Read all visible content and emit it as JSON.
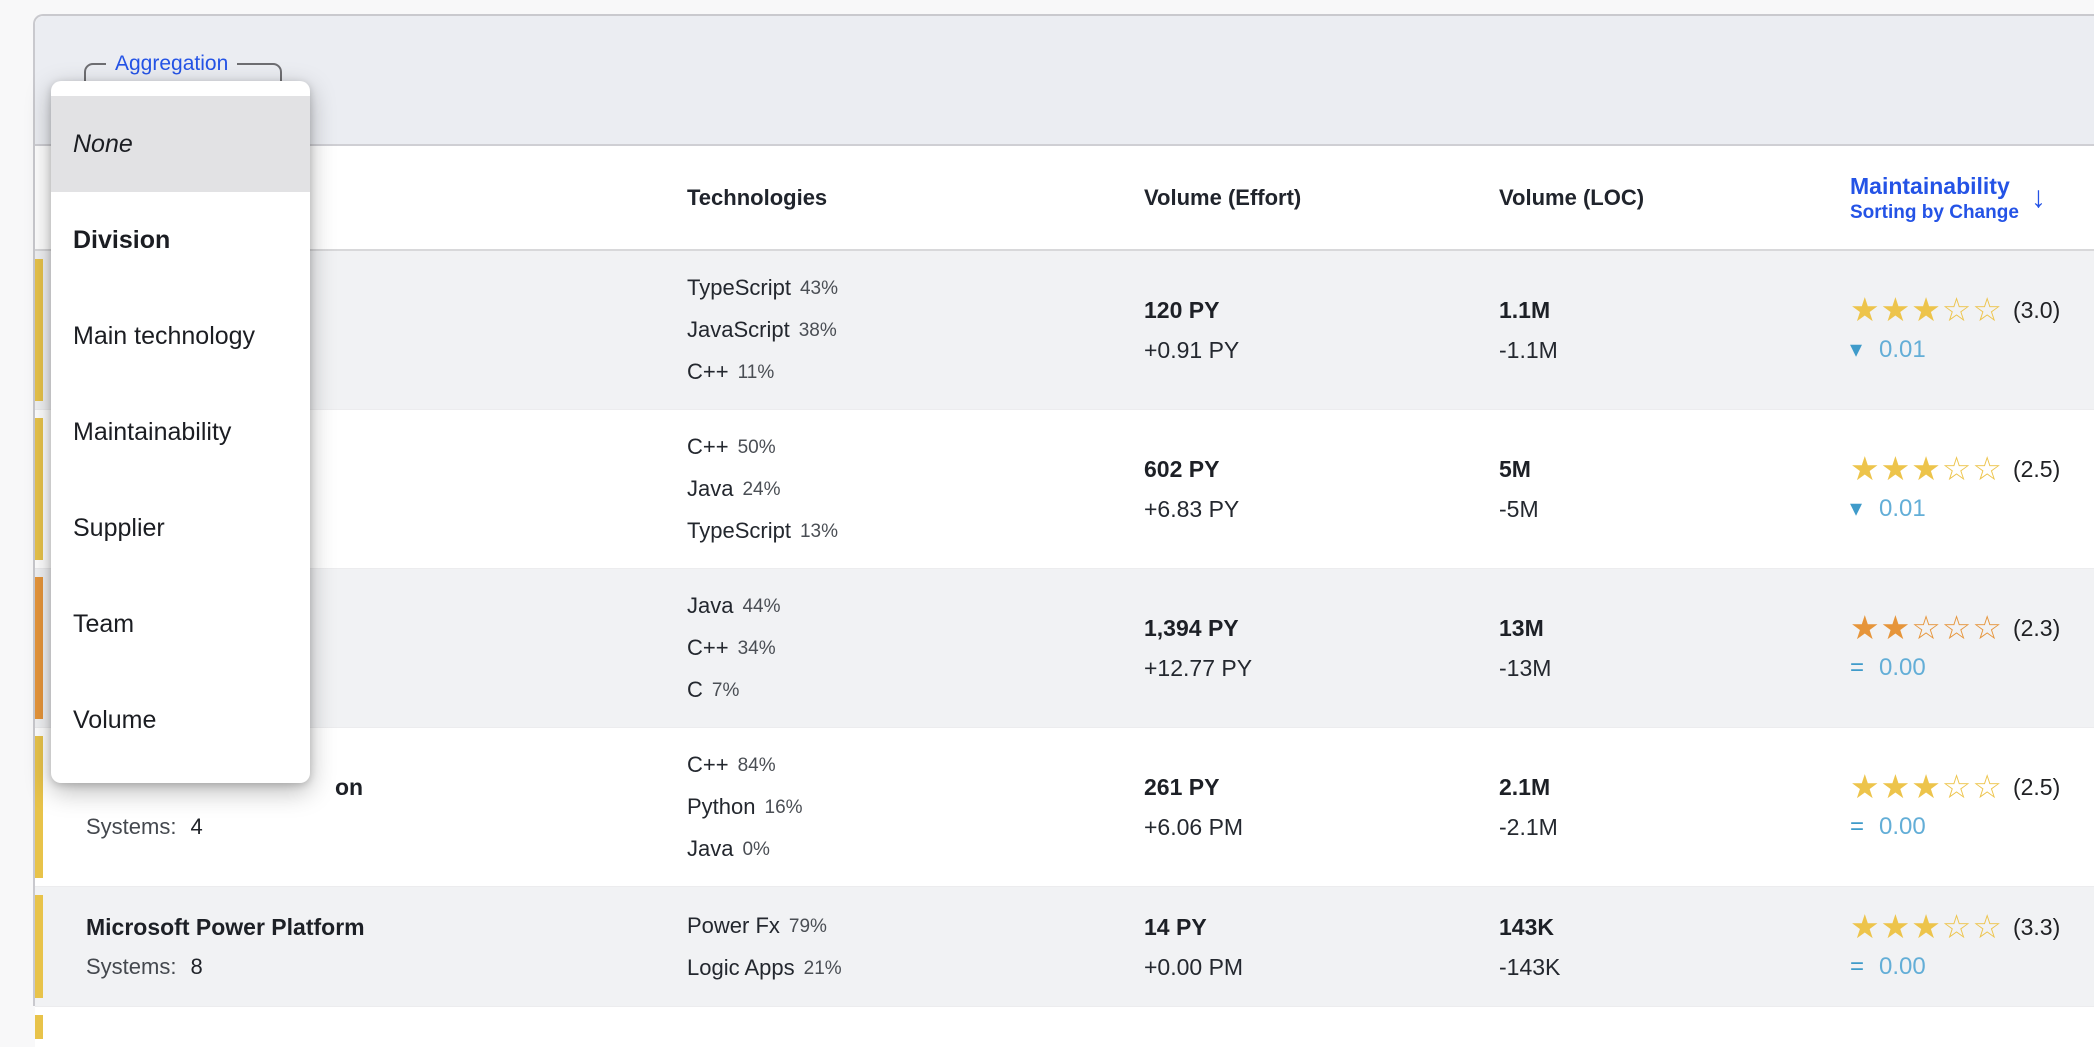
{
  "colors": {
    "accent_blue": "#2453e6",
    "bar_yellow": "#e8c34a",
    "bar_orange": "#e6953a",
    "star_yellow": "#edc44b",
    "star_orange": "#e6953a",
    "change_blue": "#63aed7",
    "change_icon_blue": "#3f9bca"
  },
  "aggregation": {
    "label": "Aggregation",
    "value": "Division"
  },
  "dropdown": {
    "items": [
      {
        "label": "None",
        "emphasis": "italic",
        "highlighted": true
      },
      {
        "label": "Division",
        "emphasis": "bold",
        "highlighted": false
      },
      {
        "label": "Main technology",
        "emphasis": null,
        "highlighted": false
      },
      {
        "label": "Maintainability",
        "emphasis": null,
        "highlighted": false
      },
      {
        "label": "Supplier",
        "emphasis": null,
        "highlighted": false
      },
      {
        "label": "Team",
        "emphasis": null,
        "highlighted": false
      },
      {
        "label": "Volume",
        "emphasis": null,
        "highlighted": false
      }
    ]
  },
  "table": {
    "headers": {
      "technologies": "Technologies",
      "effort": "Volume (Effort)",
      "loc": "Volume (LOC)",
      "maintainability": "Maintainability",
      "sort_note": "Sorting by Change",
      "sort_icon": "↓"
    },
    "systems_label": "Systems:",
    "rows": [
      {
        "name": "",
        "systems_value": "",
        "name_clipped": false,
        "bar_color": "yellow",
        "technologies": [
          {
            "name": "TypeScript",
            "pct": "43%"
          },
          {
            "name": "JavaScript",
            "pct": "38%"
          },
          {
            "name": "C++",
            "pct": "11%"
          }
        ],
        "effort": {
          "value": "120 PY",
          "change": "+0.91 PY"
        },
        "loc": {
          "value": "1.1M",
          "change": "-1.1M"
        },
        "maintainability": {
          "stars_filled": 3,
          "stars_total": 5,
          "star_color": "yellow",
          "rating": "(3.0)",
          "change_icon": "down",
          "change": "0.01"
        }
      },
      {
        "name": "",
        "systems_value": "",
        "name_clipped": false,
        "bar_color": "yellow",
        "technologies": [
          {
            "name": "C++",
            "pct": "50%"
          },
          {
            "name": "Java",
            "pct": "24%"
          },
          {
            "name": "TypeScript",
            "pct": "13%"
          }
        ],
        "effort": {
          "value": "602 PY",
          "change": "+6.83 PY"
        },
        "loc": {
          "value": "5M",
          "change": "-5M"
        },
        "maintainability": {
          "stars_filled": 3,
          "stars_total": 5,
          "star_color": "yellow",
          "rating": "(2.5)",
          "change_icon": "down",
          "change": "0.01"
        }
      },
      {
        "name": "",
        "systems_value": "",
        "name_clipped": false,
        "bar_color": "orange",
        "technologies": [
          {
            "name": "Java",
            "pct": "44%"
          },
          {
            "name": "C++",
            "pct": "34%"
          },
          {
            "name": "C",
            "pct": "7%"
          }
        ],
        "effort": {
          "value": "1,394 PY",
          "change": "+12.77 PY"
        },
        "loc": {
          "value": "13M",
          "change": "-13M"
        },
        "maintainability": {
          "stars_filled": 2,
          "stars_total": 5,
          "star_color": "orange",
          "rating": "(2.3)",
          "change_icon": "equal",
          "change": "0.00"
        }
      },
      {
        "name": "on",
        "systems_value": "4",
        "name_clipped": true,
        "bar_color": "yellow",
        "technologies": [
          {
            "name": "C++",
            "pct": "84%"
          },
          {
            "name": "Python",
            "pct": "16%"
          },
          {
            "name": "Java",
            "pct": "0%"
          }
        ],
        "effort": {
          "value": "261 PY",
          "change": "+6.06 PM"
        },
        "loc": {
          "value": "2.1M",
          "change": "-2.1M"
        },
        "maintainability": {
          "stars_filled": 3,
          "stars_total": 5,
          "star_color": "yellow",
          "rating": "(2.5)",
          "change_icon": "equal",
          "change": "0.00"
        }
      },
      {
        "name": "Microsoft Power Platform",
        "systems_value": "8",
        "name_clipped": false,
        "bar_color": "yellow",
        "technologies": [
          {
            "name": "Power Fx",
            "pct": "79%"
          },
          {
            "name": "Logic Apps",
            "pct": "21%"
          }
        ],
        "effort": {
          "value": "14 PY",
          "change": "+0.00 PM"
        },
        "loc": {
          "value": "143K",
          "change": "-143K"
        },
        "maintainability": {
          "stars_filled": 3,
          "stars_total": 5,
          "star_color": "yellow",
          "rating": "(3.3)",
          "change_icon": "equal",
          "change": "0.00"
        }
      }
    ],
    "partial_row": {
      "bar_color": "yellow"
    }
  }
}
